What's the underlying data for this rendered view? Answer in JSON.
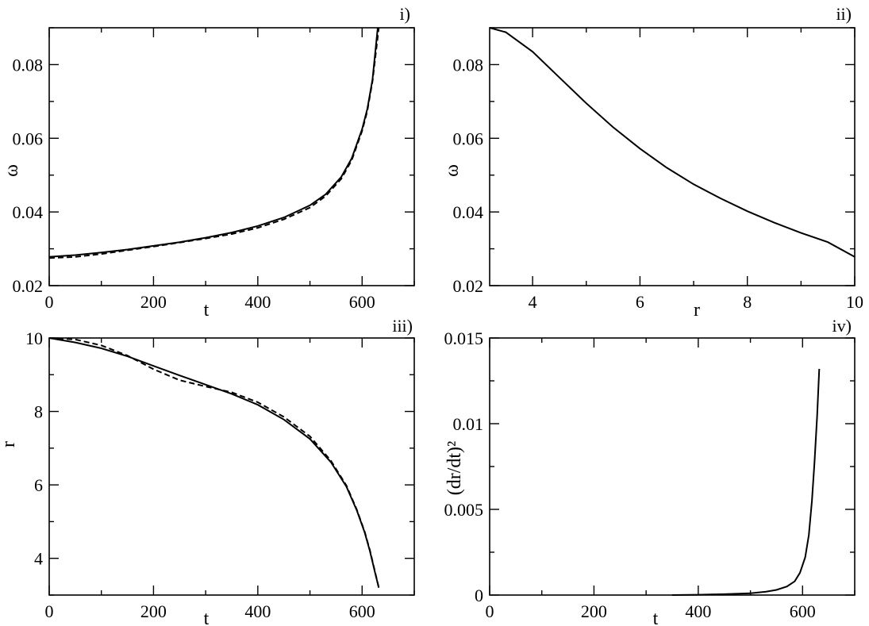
{
  "chart_data": [
    {
      "type": "line",
      "panel_tag": "i)",
      "xlabel": "t",
      "ylabel": "ω",
      "xlim": [
        0,
        700
      ],
      "ylim": [
        0.02,
        0.09
      ],
      "x_ticks": [
        0,
        200,
        400,
        600
      ],
      "x_tick_labels": [
        "0",
        "200",
        "400",
        "600"
      ],
      "y_ticks": [
        0.02,
        0.04,
        0.06,
        0.08
      ],
      "y_tick_labels": [
        "0.02",
        "0.04",
        "0.06",
        "0.08"
      ],
      "series": [
        {
          "style": "solid",
          "x": [
            0,
            50,
            100,
            150,
            200,
            250,
            300,
            350,
            400,
            450,
            500,
            530,
            560,
            580,
            600,
            610,
            620,
            630
          ],
          "y": [
            0.0278,
            0.0283,
            0.029,
            0.0298,
            0.0308,
            0.0318,
            0.033,
            0.0344,
            0.0362,
            0.0385,
            0.0418,
            0.0448,
            0.0495,
            0.0545,
            0.0625,
            0.068,
            0.076,
            0.09
          ]
        },
        {
          "style": "dashed",
          "x": [
            0,
            50,
            100,
            150,
            200,
            250,
            300,
            350,
            400,
            450,
            500,
            530,
            560,
            580,
            600,
            610,
            620,
            632
          ],
          "y": [
            0.0275,
            0.0278,
            0.0286,
            0.0296,
            0.0306,
            0.0317,
            0.0328,
            0.034,
            0.0357,
            0.038,
            0.0412,
            0.0443,
            0.049,
            0.054,
            0.062,
            0.0675,
            0.0755,
            0.09
          ]
        }
      ]
    },
    {
      "type": "line",
      "panel_tag": "ii)",
      "xlabel": "r",
      "ylabel": "ω",
      "xlim": [
        3.2,
        10
      ],
      "ylim": [
        0.02,
        0.09
      ],
      "x_ticks": [
        4,
        6,
        8,
        10
      ],
      "x_tick_labels": [
        "4",
        "6",
        "8",
        "10"
      ],
      "y_ticks": [
        0.02,
        0.04,
        0.06,
        0.08
      ],
      "y_tick_labels": [
        "0.02",
        "0.04",
        "0.06",
        "0.08"
      ],
      "series": [
        {
          "style": "solid",
          "x": [
            3.2,
            3.5,
            4.0,
            4.5,
            5.0,
            5.5,
            6.0,
            6.5,
            7.0,
            7.5,
            8.0,
            8.5,
            9.0,
            9.5,
            10.0
          ],
          "y": [
            0.09,
            0.0888,
            0.0835,
            0.0765,
            0.0695,
            0.063,
            0.0572,
            0.052,
            0.0475,
            0.0437,
            0.0402,
            0.0371,
            0.0343,
            0.0318,
            0.0278
          ]
        }
      ]
    },
    {
      "type": "line",
      "panel_tag": "iii)",
      "xlabel": "t",
      "ylabel": "r",
      "xlim": [
        0,
        700
      ],
      "ylim": [
        3,
        10
      ],
      "x_ticks": [
        0,
        200,
        400,
        600
      ],
      "x_tick_labels": [
        "0",
        "200",
        "400",
        "600"
      ],
      "y_ticks": [
        4,
        6,
        8,
        10
      ],
      "y_tick_labels": [
        "4",
        "6",
        "8",
        "10"
      ],
      "series": [
        {
          "style": "solid",
          "x": [
            0,
            50,
            100,
            150,
            200,
            250,
            300,
            350,
            400,
            450,
            500,
            540,
            570,
            590,
            605,
            615,
            625,
            632
          ],
          "y": [
            10,
            9.88,
            9.72,
            9.5,
            9.24,
            8.98,
            8.73,
            8.48,
            8.18,
            7.78,
            7.25,
            6.62,
            5.95,
            5.3,
            4.7,
            4.2,
            3.6,
            3.2
          ]
        },
        {
          "style": "dashed",
          "x": [
            0,
            50,
            100,
            150,
            200,
            250,
            300,
            350,
            400,
            450,
            500,
            540,
            570,
            590,
            605,
            615,
            625,
            632
          ],
          "y": [
            10,
            9.96,
            9.8,
            9.52,
            9.15,
            8.85,
            8.68,
            8.52,
            8.25,
            7.85,
            7.32,
            6.66,
            5.98,
            5.32,
            4.72,
            4.22,
            3.62,
            3.2
          ]
        }
      ]
    },
    {
      "type": "line",
      "panel_tag": "iv)",
      "xlabel": "t",
      "ylabel": "(dr/dt)²",
      "xlim": [
        0,
        700
      ],
      "ylim": [
        0,
        0.015
      ],
      "x_ticks": [
        0,
        200,
        400,
        600
      ],
      "x_tick_labels": [
        "0",
        "200",
        "400",
        "600"
      ],
      "y_ticks": [
        0,
        0.005,
        0.01,
        0.015
      ],
      "y_tick_labels": [
        "0",
        "0.005",
        "0.01",
        "0.015"
      ],
      "series": [
        {
          "style": "solid",
          "x": [
            350,
            400,
            450,
            500,
            530,
            550,
            570,
            585,
            595,
            605,
            612,
            618,
            623,
            628,
            632
          ],
          "y": [
            0.0,
            2e-05,
            5e-05,
            0.0001,
            0.0002,
            0.0003,
            0.0005,
            0.0008,
            0.0013,
            0.0022,
            0.0035,
            0.0055,
            0.0078,
            0.0105,
            0.0132
          ]
        }
      ]
    }
  ]
}
